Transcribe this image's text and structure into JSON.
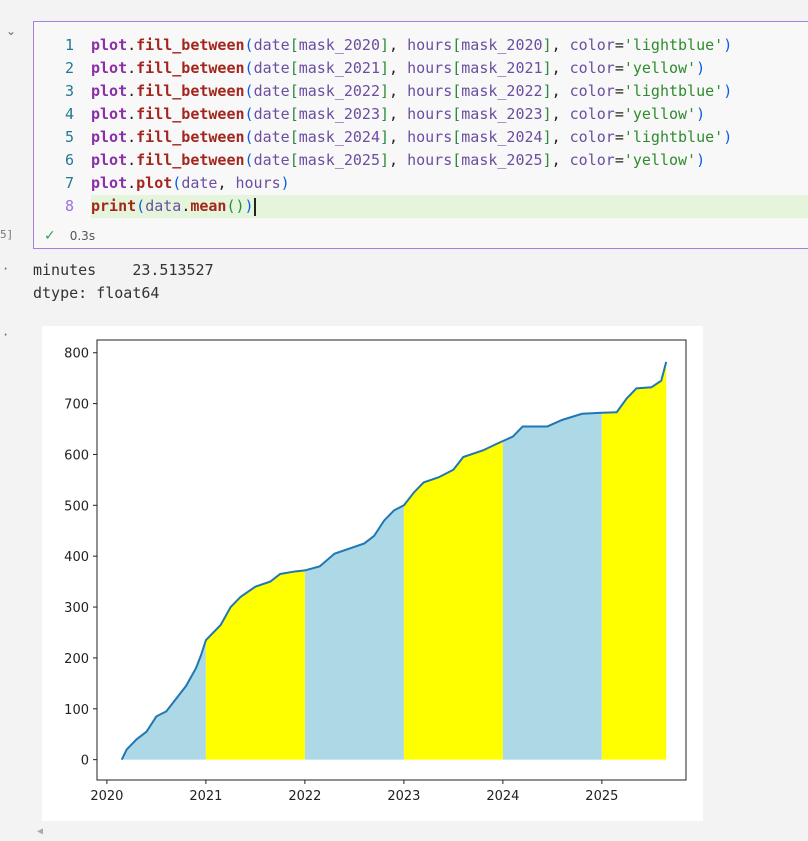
{
  "cell": {
    "exec_count": "5]",
    "status_time": "0.3s",
    "lines": [
      {
        "n": "1",
        "tokens": [
          [
            "plot",
            "k"
          ],
          [
            ".",
            "p"
          ],
          [
            "fill_between",
            "f"
          ],
          [
            "(",
            "b"
          ],
          [
            "date",
            "v"
          ],
          [
            "[",
            "g"
          ],
          [
            "mask_2020",
            "v"
          ],
          [
            "]",
            "g"
          ],
          [
            ", ",
            "p"
          ],
          [
            "hours",
            "v"
          ],
          [
            "[",
            "g"
          ],
          [
            "mask_2020",
            "v"
          ],
          [
            "]",
            "g"
          ],
          [
            ", ",
            "p"
          ],
          [
            "color",
            "v"
          ],
          [
            "=",
            "p"
          ],
          [
            "'lightblue'",
            "s"
          ],
          [
            ")",
            "b"
          ]
        ]
      },
      {
        "n": "2",
        "tokens": [
          [
            "plot",
            "k"
          ],
          [
            ".",
            "p"
          ],
          [
            "fill_between",
            "f"
          ],
          [
            "(",
            "b"
          ],
          [
            "date",
            "v"
          ],
          [
            "[",
            "g"
          ],
          [
            "mask_2021",
            "v"
          ],
          [
            "]",
            "g"
          ],
          [
            ", ",
            "p"
          ],
          [
            "hours",
            "v"
          ],
          [
            "[",
            "g"
          ],
          [
            "mask_2021",
            "v"
          ],
          [
            "]",
            "g"
          ],
          [
            ", ",
            "p"
          ],
          [
            "color",
            "v"
          ],
          [
            "=",
            "p"
          ],
          [
            "'yellow'",
            "s"
          ],
          [
            ")",
            "b"
          ]
        ]
      },
      {
        "n": "3",
        "tokens": [
          [
            "plot",
            "k"
          ],
          [
            ".",
            "p"
          ],
          [
            "fill_between",
            "f"
          ],
          [
            "(",
            "b"
          ],
          [
            "date",
            "v"
          ],
          [
            "[",
            "g"
          ],
          [
            "mask_2022",
            "v"
          ],
          [
            "]",
            "g"
          ],
          [
            ", ",
            "p"
          ],
          [
            "hours",
            "v"
          ],
          [
            "[",
            "g"
          ],
          [
            "mask_2022",
            "v"
          ],
          [
            "]",
            "g"
          ],
          [
            ", ",
            "p"
          ],
          [
            "color",
            "v"
          ],
          [
            "=",
            "p"
          ],
          [
            "'lightblue'",
            "s"
          ],
          [
            ")",
            "b"
          ]
        ]
      },
      {
        "n": "4",
        "tokens": [
          [
            "plot",
            "k"
          ],
          [
            ".",
            "p"
          ],
          [
            "fill_between",
            "f"
          ],
          [
            "(",
            "b"
          ],
          [
            "date",
            "v"
          ],
          [
            "[",
            "g"
          ],
          [
            "mask_2023",
            "v"
          ],
          [
            "]",
            "g"
          ],
          [
            ", ",
            "p"
          ],
          [
            "hours",
            "v"
          ],
          [
            "[",
            "g"
          ],
          [
            "mask_2023",
            "v"
          ],
          [
            "]",
            "g"
          ],
          [
            ", ",
            "p"
          ],
          [
            "color",
            "v"
          ],
          [
            "=",
            "p"
          ],
          [
            "'yellow'",
            "s"
          ],
          [
            ")",
            "b"
          ]
        ]
      },
      {
        "n": "5",
        "tokens": [
          [
            "plot",
            "k"
          ],
          [
            ".",
            "p"
          ],
          [
            "fill_between",
            "f"
          ],
          [
            "(",
            "b"
          ],
          [
            "date",
            "v"
          ],
          [
            "[",
            "g"
          ],
          [
            "mask_2024",
            "v"
          ],
          [
            "]",
            "g"
          ],
          [
            ", ",
            "p"
          ],
          [
            "hours",
            "v"
          ],
          [
            "[",
            "g"
          ],
          [
            "mask_2024",
            "v"
          ],
          [
            "]",
            "g"
          ],
          [
            ", ",
            "p"
          ],
          [
            "color",
            "v"
          ],
          [
            "=",
            "p"
          ],
          [
            "'lightblue'",
            "s"
          ],
          [
            ")",
            "b"
          ]
        ]
      },
      {
        "n": "6",
        "tokens": [
          [
            "plot",
            "k"
          ],
          [
            ".",
            "p"
          ],
          [
            "fill_between",
            "f"
          ],
          [
            "(",
            "b"
          ],
          [
            "date",
            "v"
          ],
          [
            "[",
            "g"
          ],
          [
            "mask_2025",
            "v"
          ],
          [
            "]",
            "g"
          ],
          [
            ", ",
            "p"
          ],
          [
            "hours",
            "v"
          ],
          [
            "[",
            "g"
          ],
          [
            "mask_2025",
            "v"
          ],
          [
            "]",
            "g"
          ],
          [
            ", ",
            "p"
          ],
          [
            "color",
            "v"
          ],
          [
            "=",
            "p"
          ],
          [
            "'yellow'",
            "s"
          ],
          [
            ")",
            "b"
          ]
        ]
      },
      {
        "n": "7",
        "tokens": [
          [
            "plot",
            "k"
          ],
          [
            ".",
            "p"
          ],
          [
            "plot",
            "f"
          ],
          [
            "(",
            "b"
          ],
          [
            "date",
            "v"
          ],
          [
            ", ",
            "p"
          ],
          [
            "hours",
            "v"
          ],
          [
            ")",
            "b"
          ]
        ]
      },
      {
        "n": "8",
        "tokens": [
          [
            "print",
            "f"
          ],
          [
            "(",
            "b"
          ],
          [
            "data",
            "v"
          ],
          [
            ".",
            "p"
          ],
          [
            "mean",
            "f"
          ],
          [
            "()",
            "g"
          ],
          [
            ")",
            "b"
          ]
        ]
      }
    ]
  },
  "output": {
    "text_lines": [
      "minutes    23.513527",
      "dtype: float64"
    ]
  },
  "chart_data": {
    "type": "area",
    "xlim": [
      2019.9,
      2025.85
    ],
    "ylim": [
      -40,
      825
    ],
    "x_ticks": [
      "2020",
      "2021",
      "2022",
      "2023",
      "2024",
      "2025"
    ],
    "y_ticks": [
      "0",
      "100",
      "200",
      "300",
      "400",
      "500",
      "600",
      "700",
      "800"
    ],
    "line_color": "#1f77b4",
    "fill_colors": {
      "lightblue": "#add8e6",
      "yellow": "#ffff00"
    },
    "fills": [
      {
        "year": "2020",
        "color": "lightblue"
      },
      {
        "year": "2021",
        "color": "yellow"
      },
      {
        "year": "2022",
        "color": "lightblue"
      },
      {
        "year": "2023",
        "color": "yellow"
      },
      {
        "year": "2024",
        "color": "lightblue"
      },
      {
        "year": "2025",
        "color": "yellow"
      }
    ],
    "x": [
      2020.15,
      2020.2,
      2020.3,
      2020.4,
      2020.5,
      2020.6,
      2020.7,
      2020.8,
      2020.9,
      2020.95,
      2021.0,
      2021.05,
      2021.15,
      2021.25,
      2021.35,
      2021.5,
      2021.65,
      2021.75,
      2021.9,
      2022.0,
      2022.15,
      2022.3,
      2022.45,
      2022.6,
      2022.7,
      2022.8,
      2022.9,
      2023.0,
      2023.1,
      2023.2,
      2023.35,
      2023.5,
      2023.6,
      2023.8,
      2023.95,
      2024.1,
      2024.2,
      2024.45,
      2024.6,
      2024.8,
      2025.0,
      2025.15,
      2025.25,
      2025.35,
      2025.5,
      2025.6,
      2025.65
    ],
    "y": [
      0,
      20,
      40,
      55,
      85,
      95,
      120,
      145,
      180,
      205,
      235,
      245,
      265,
      300,
      320,
      340,
      350,
      365,
      370,
      372,
      380,
      405,
      415,
      425,
      440,
      470,
      490,
      500,
      525,
      545,
      555,
      570,
      595,
      608,
      622,
      635,
      655,
      655,
      668,
      680,
      682,
      683,
      710,
      730,
      732,
      745,
      782
    ]
  }
}
